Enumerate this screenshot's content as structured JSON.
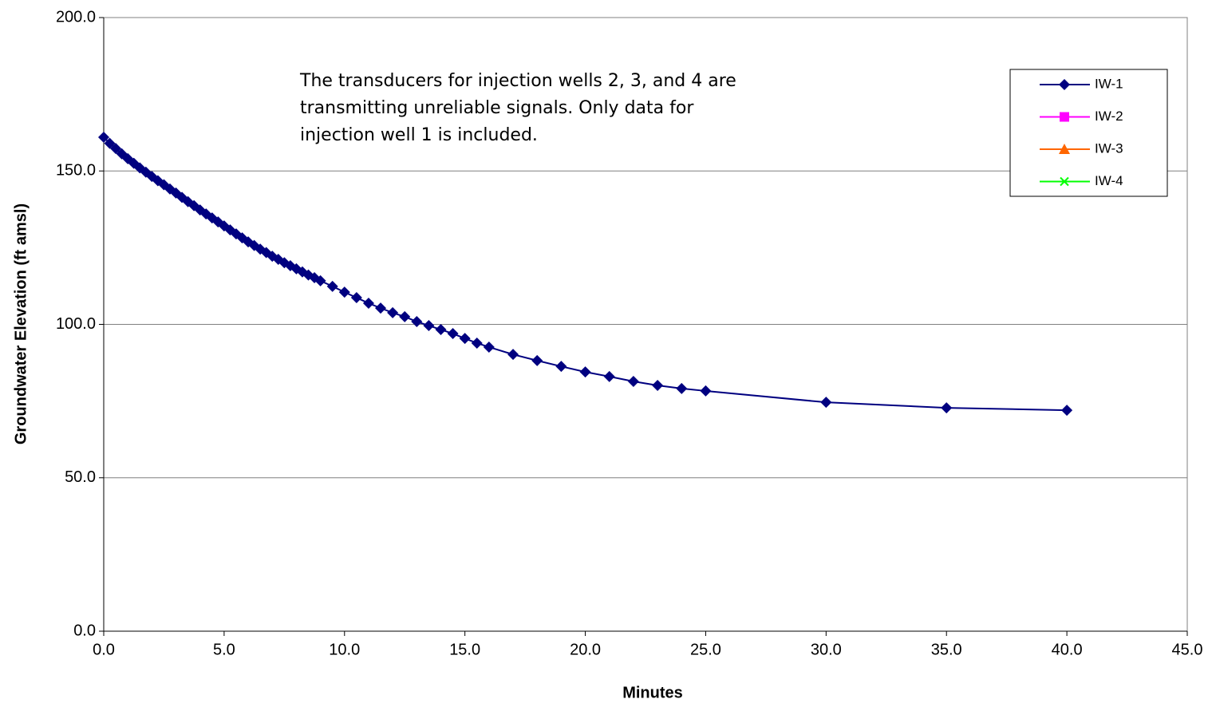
{
  "chart_data": {
    "type": "line",
    "xlabel": "Minutes",
    "ylabel": "Groundwater Elevation (ft amsl)",
    "annotation": [
      "The transducers for injection wells 2, 3, and 4 are",
      "transmitting unreliable signals. Only data for",
      "injection well 1 is included."
    ],
    "xlim": [
      0,
      45
    ],
    "xticks": [
      {
        "value": 0,
        "label": "0.0"
      },
      {
        "value": 5,
        "label": "5.0"
      },
      {
        "value": 10,
        "label": "10.0"
      },
      {
        "value": 15,
        "label": "15.0"
      },
      {
        "value": 20,
        "label": "20.0"
      },
      {
        "value": 25,
        "label": "25.0"
      },
      {
        "value": 30,
        "label": "30.0"
      },
      {
        "value": 35,
        "label": "35.0"
      },
      {
        "value": 40,
        "label": "40.0"
      },
      {
        "value": 45,
        "label": "45.0"
      }
    ],
    "ylim": [
      0,
      200
    ],
    "yticks": [
      {
        "value": 0,
        "label": "0.0"
      },
      {
        "value": 50,
        "label": "50.0"
      },
      {
        "value": 100,
        "label": "100.0"
      },
      {
        "value": 150,
        "label": "150.0"
      },
      {
        "value": 200,
        "label": "200.0"
      }
    ],
    "grid": true,
    "legend": "upper right",
    "series": [
      {
        "name": "IW-1",
        "color": "#000080",
        "marker": "diamond",
        "x": [
          0,
          0.25,
          0.5,
          0.75,
          1,
          1.25,
          1.5,
          1.75,
          2,
          2.25,
          2.5,
          2.75,
          3,
          3.25,
          3.5,
          3.75,
          4,
          4.25,
          4.5,
          4.75,
          5,
          5.25,
          5.5,
          5.75,
          6,
          6.25,
          6.5,
          6.75,
          7,
          7.25,
          7.5,
          7.75,
          8,
          8.25,
          8.5,
          8.75,
          9,
          9.5,
          10,
          10.5,
          11,
          11.5,
          12,
          12.5,
          13,
          13.5,
          14,
          14.5,
          15,
          15.5,
          16,
          17,
          18,
          19,
          20,
          21,
          22,
          23,
          24,
          25,
          30,
          35,
          40
        ],
        "values": [
          161.0,
          159.0,
          157.3,
          155.6,
          154.0,
          152.5,
          151.0,
          149.6,
          148.2,
          146.8,
          145.5,
          144.1,
          142.8,
          141.4,
          140.0,
          138.7,
          137.3,
          136.0,
          134.7,
          133.4,
          132.1,
          130.8,
          129.5,
          128.2,
          126.9,
          125.7,
          124.5,
          123.4,
          122.2,
          121.2,
          120.1,
          119.1,
          118.1,
          117.1,
          116.1,
          115.2,
          114.2,
          112.4,
          110.5,
          108.7,
          106.9,
          105.3,
          103.8,
          102.5,
          100.9,
          99.6,
          98.3,
          97.0,
          95.4,
          93.9,
          92.6,
          90.2,
          88.2,
          86.3,
          84.5,
          83.0,
          81.4,
          80.1,
          79.1,
          78.3,
          74.6,
          72.8,
          72.0
        ]
      },
      {
        "name": "IW-2",
        "color": "#ff00ff",
        "marker": "square",
        "x": [],
        "values": []
      },
      {
        "name": "IW-3",
        "color": "#ff6600",
        "marker": "triangle",
        "x": [],
        "values": []
      },
      {
        "name": "IW-4",
        "color": "#00ff00",
        "marker": "cross",
        "x": [],
        "values": []
      }
    ]
  }
}
